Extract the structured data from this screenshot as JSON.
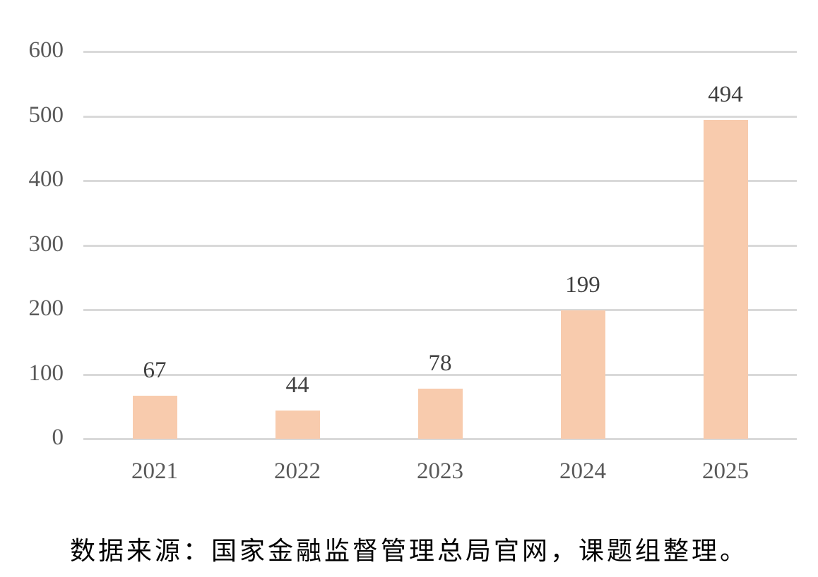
{
  "chart_data": {
    "type": "bar",
    "title": "",
    "xlabel": "",
    "ylabel": "",
    "categories": [
      "2021",
      "2022",
      "2023",
      "2024",
      "2025"
    ],
    "values": [
      67,
      44,
      78,
      199,
      494
    ],
    "data_labels": [
      "67",
      "44",
      "78",
      "199",
      "494"
    ],
    "yticks": [
      "0",
      "100",
      "200",
      "300",
      "400",
      "500",
      "600"
    ],
    "ylim": [
      0,
      600
    ],
    "grid": true,
    "legend": null,
    "bar_color": "#f8cbad"
  },
  "source_note": "数据来源：国家金融监督管理总局官网，课题组整理。"
}
